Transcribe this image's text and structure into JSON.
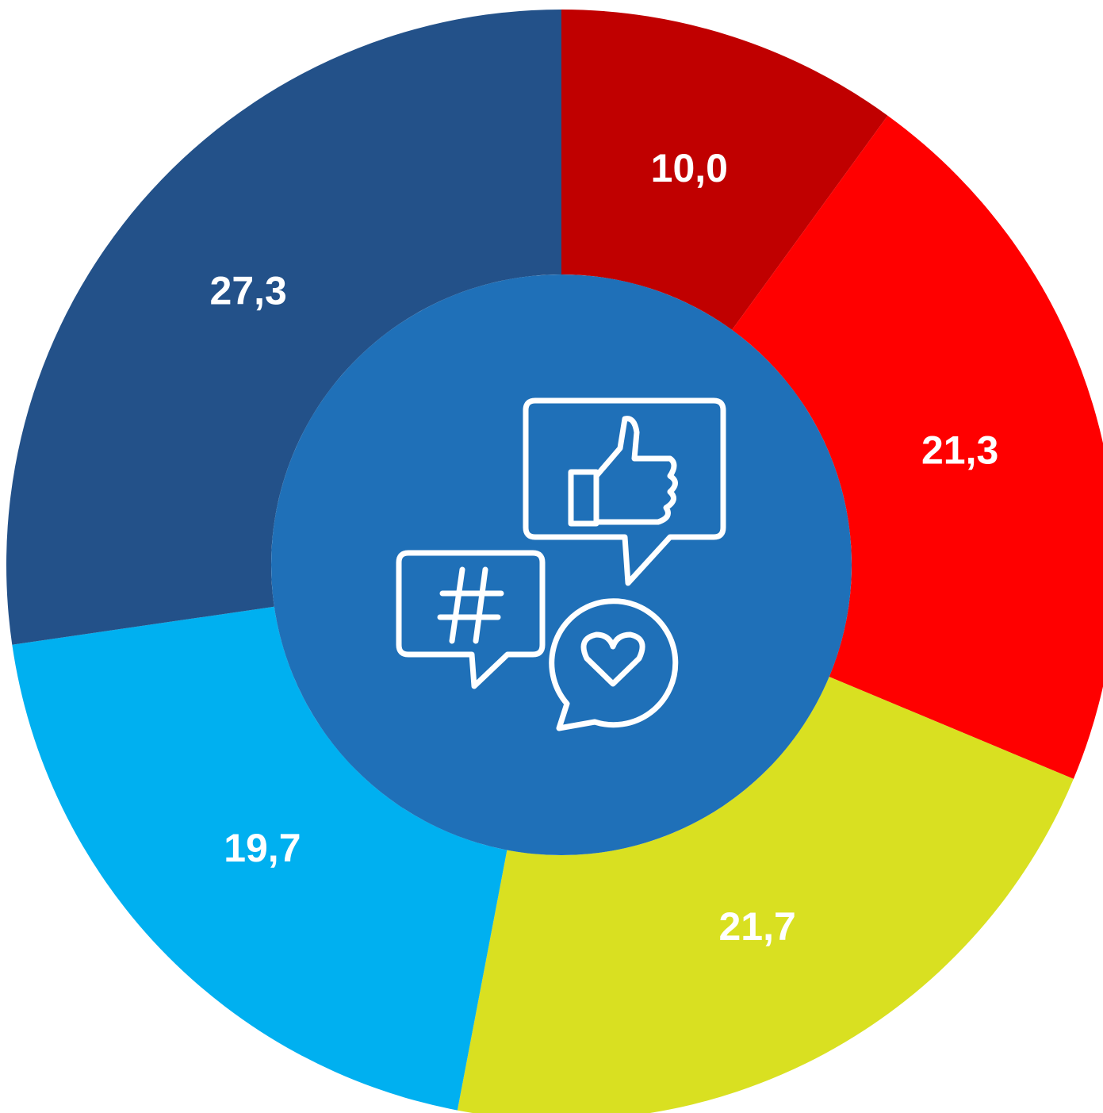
{
  "chart_data": {
    "type": "donut",
    "values": [
      10.0,
      21.3,
      21.7,
      19.7,
      27.3
    ],
    "value_labels": [
      "10,0",
      "21,3",
      "21,7",
      "19,7",
      "27,3"
    ],
    "colors": [
      "#c00000",
      "#ff0000",
      "#d9e021",
      "#00b0f0",
      "#235189"
    ],
    "center_color": "#1f70b8"
  }
}
